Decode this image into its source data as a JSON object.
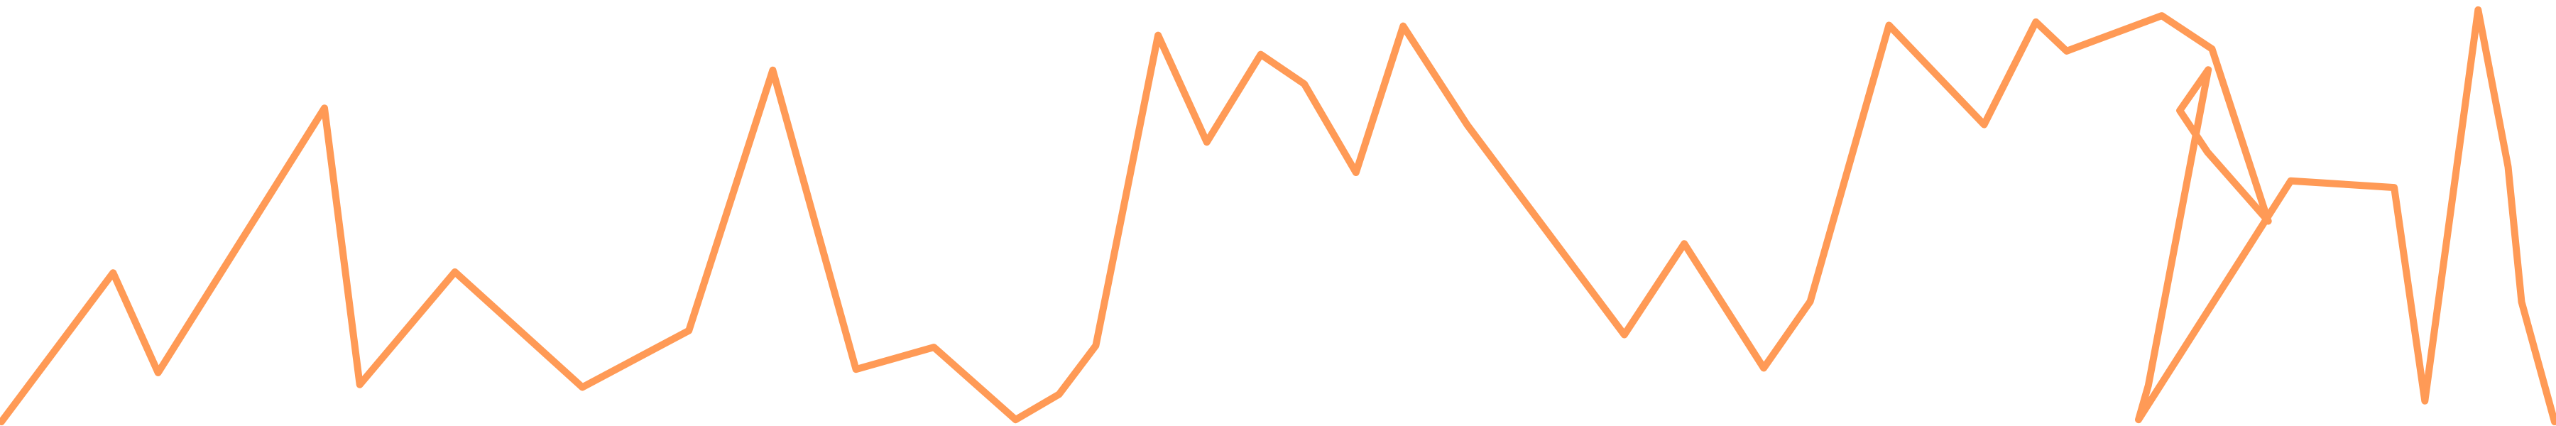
{
  "chart_data": {
    "type": "line",
    "title": "",
    "xlabel": "",
    "ylabel": "",
    "grid": false,
    "legend": "none",
    "axes_visible": false,
    "color": "#ff9a56",
    "ylim": [
      0,
      100
    ],
    "series": [
      {
        "points": [
          [
            0,
            0
          ],
          [
            149,
            35.8
          ],
          [
            209,
            11.8
          ],
          [
            431,
            75.4
          ],
          [
            478,
            8.9
          ],
          [
            605,
            36
          ],
          [
            775,
            8.3
          ],
          [
            917,
            21.9
          ],
          [
            1029,
            84.5
          ],
          [
            1140,
            12.6
          ],
          [
            1244,
            17.9
          ],
          [
            1353,
            0.5
          ],
          [
            1411,
            6.6
          ],
          [
            1460,
            18.3
          ],
          [
            1543,
            92.9
          ],
          [
            1608,
            67.2
          ],
          [
            1680,
            88.3
          ],
          [
            1738,
            81.2
          ],
          [
            1807,
            59.9
          ],
          [
            1870,
            95.1
          ],
          [
            1956,
            71.2
          ],
          [
            2165,
            20.9
          ],
          [
            2245,
            42.8
          ],
          [
            2351,
            12.9
          ],
          [
            2413,
            28.9
          ],
          [
            2518,
            95.3
          ],
          [
            2645,
            71.4
          ],
          [
            2714,
            96.1
          ],
          [
            2755,
            89.1
          ],
          [
            2882,
            97.6
          ],
          [
            2949,
            89.6
          ],
          [
            3024,
            48.2
          ],
          [
            2943,
            64.8
          ],
          [
            2906,
            74.8
          ],
          [
            2944,
            84.6
          ],
          [
            2864,
            8.7
          ],
          [
            2851,
            0.5
          ],
          [
            3054,
            57.9
          ],
          [
            3192,
            56.3
          ],
          [
            3233,
            5
          ],
          [
            3304,
            99
          ],
          [
            3344,
            61.3
          ],
          [
            3362,
            28.8
          ],
          [
            3406,
            0
          ]
        ]
      }
    ]
  }
}
